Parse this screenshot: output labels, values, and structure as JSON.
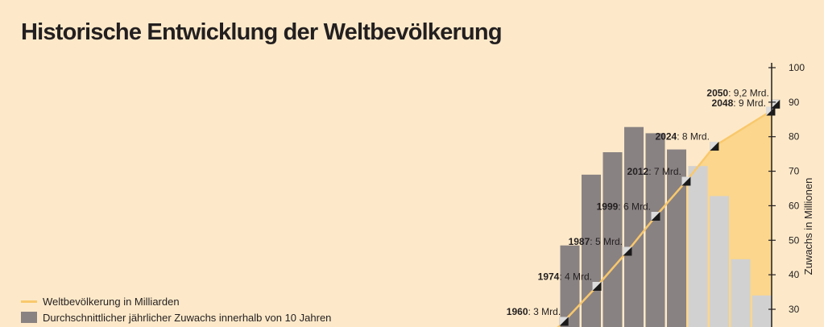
{
  "title": "Historische Entwicklung der Weltbevölkerung",
  "legend": {
    "line_label": "Weltbevölkerung in Milliarden",
    "bar_label": "Durchschnittlicher jährlicher Zuwachs innerhalb von 10 Jahren"
  },
  "colors": {
    "background": "#fde9c9",
    "bar_historical": "#898283",
    "bar_projected": "#d2d1d1",
    "line": "#f9c86c",
    "area": "#fbd68c",
    "marker": "#1a1a1a"
  },
  "chart_data": {
    "type": "bar",
    "title": "Historische Entwicklung der Weltbevölkerung",
    "ylabel": "Zuwachs in Millionen",
    "ylim": [
      30,
      100
    ],
    "yticks": [
      30,
      40,
      50,
      60,
      70,
      80,
      90,
      100
    ],
    "bars": [
      {
        "value": 48.5,
        "status": "historical"
      },
      {
        "value": 69,
        "status": "historical"
      },
      {
        "value": 75.5,
        "status": "historical"
      },
      {
        "value": 82.8,
        "status": "historical"
      },
      {
        "value": 81,
        "status": "historical"
      },
      {
        "value": 76.3,
        "status": "historical"
      },
      {
        "value": 71.5,
        "status": "projected"
      },
      {
        "value": 62.8,
        "status": "projected"
      },
      {
        "value": 44.5,
        "status": "projected"
      },
      {
        "value": 34,
        "status": "projected"
      }
    ],
    "series": [
      {
        "name": "Weltbevölkerung in Milliarden",
        "type": "line",
        "points": [
          {
            "year": 1960,
            "value": 3,
            "label_year": "1960",
            "label_rest": ": 3 Mrd."
          },
          {
            "year": 1974,
            "value": 4,
            "label_year": "1974",
            "label_rest": ": 4 Mrd."
          },
          {
            "year": 1987,
            "value": 5,
            "label_year": "1987",
            "label_rest": ": 5 Mrd."
          },
          {
            "year": 1999,
            "value": 6,
            "label_year": "1999",
            "label_rest": ": 6 Mrd."
          },
          {
            "year": 2012,
            "value": 7,
            "label_year": "2012",
            "label_rest": ": 7 Mrd."
          },
          {
            "year": 2024,
            "value": 8,
            "label_year": "2024",
            "label_rest": ": 8 Mrd."
          },
          {
            "year": 2048,
            "value": 9,
            "label_year": "2048",
            "label_rest": ": 9 Mrd."
          },
          {
            "year": 2050,
            "value": 9.2,
            "label_year": "2050",
            "label_rest": ": 9,2 Mrd."
          }
        ]
      }
    ]
  }
}
